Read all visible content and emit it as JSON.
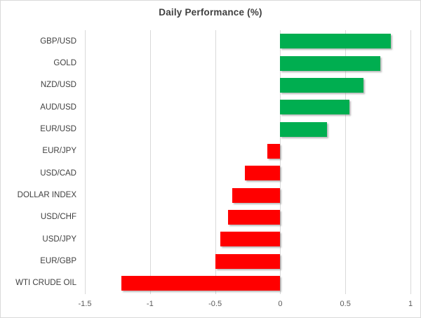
{
  "title": "Daily Performance (%)",
  "colors": {
    "positive": "#00AE50",
    "negative": "#FF0000",
    "gridline": "#D9D9D9",
    "title_text": "#404040",
    "category_text": "#404040",
    "tick_text": "#595959",
    "border": "#D9D9D9",
    "background": "#FFFFFF"
  },
  "chart_data": {
    "type": "bar",
    "orientation": "horizontal",
    "title": "Daily Performance (%)",
    "categories": [
      "GBP/USD",
      "GOLD",
      "NZD/USD",
      "AUD/USD",
      "EUR/USD",
      "EUR/JPY",
      "USD/CAD",
      "DOLLAR INDEX",
      "USD/CHF",
      "USD/JPY",
      "EUR/GBP",
      "WTI CRUDE OIL"
    ],
    "values": [
      0.85,
      0.77,
      0.64,
      0.53,
      0.36,
      -0.1,
      -0.27,
      -0.37,
      -0.4,
      -0.46,
      -0.5,
      -1.22
    ],
    "xlabel": "",
    "ylabel": "",
    "xlim": [
      -1.5,
      1
    ],
    "xticks": [
      -1.5,
      -1,
      -0.5,
      0,
      0.5,
      1
    ],
    "xtick_labels": [
      "-1.5",
      "-1",
      "-0.5",
      "0",
      "0.5",
      "1"
    ],
    "grid": "vertical",
    "legend": "none",
    "bar_color_rule": "green if positive, red if negative"
  }
}
